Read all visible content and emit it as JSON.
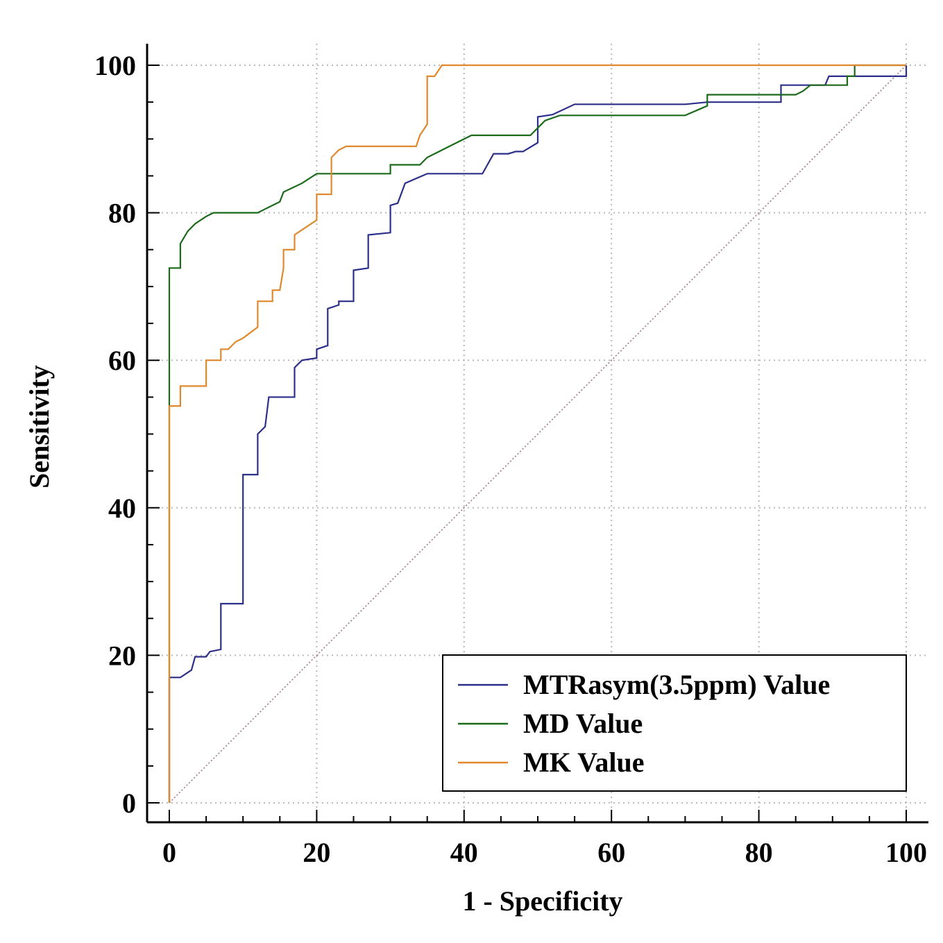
{
  "chart_data": {
    "type": "line",
    "title": "",
    "xlabel": "1 - Specificity",
    "ylabel": "Sensitivity",
    "xlim": [
      0,
      100
    ],
    "ylim": [
      0,
      100
    ],
    "xticks": [
      "0",
      "20",
      "40",
      "60",
      "80",
      "100"
    ],
    "yticks": [
      "0",
      "20",
      "40",
      "60",
      "80",
      "100"
    ],
    "grid": true,
    "legend_position": "bottom-right",
    "reference_line": {
      "name": "diagonal",
      "color": "#a07480",
      "points": [
        [
          0,
          0
        ],
        [
          100,
          100
        ]
      ]
    },
    "series": [
      {
        "name": "MTRasym(3.5ppm) Value",
        "color": "#2b2f8a",
        "points": [
          [
            0,
            0
          ],
          [
            0,
            17
          ],
          [
            1.5,
            17
          ],
          [
            3,
            18
          ],
          [
            3.5,
            19.8
          ],
          [
            5,
            19.8
          ],
          [
            5.5,
            20.5
          ],
          [
            7,
            20.8
          ],
          [
            7,
            27
          ],
          [
            10,
            27
          ],
          [
            10,
            44.5
          ],
          [
            12,
            44.5
          ],
          [
            12,
            50
          ],
          [
            13,
            51
          ],
          [
            13.5,
            55
          ],
          [
            17,
            55
          ],
          [
            17,
            59
          ],
          [
            18,
            60
          ],
          [
            20,
            60.3
          ],
          [
            20,
            61.5
          ],
          [
            21.5,
            62
          ],
          [
            21.5,
            67
          ],
          [
            23,
            67.5
          ],
          [
            23,
            68
          ],
          [
            25,
            68
          ],
          [
            25,
            72.2
          ],
          [
            27,
            72.5
          ],
          [
            27,
            77
          ],
          [
            30,
            77.3
          ],
          [
            30,
            81
          ],
          [
            31,
            81.3
          ],
          [
            32,
            84
          ],
          [
            35,
            85.3
          ],
          [
            40,
            85.3
          ],
          [
            42.5,
            85.3
          ],
          [
            44,
            88
          ],
          [
            46,
            88
          ],
          [
            47,
            88.3
          ],
          [
            48,
            88.3
          ],
          [
            50,
            89.5
          ],
          [
            50,
            93
          ],
          [
            52,
            93.3
          ],
          [
            55,
            94.7
          ],
          [
            60,
            94.7
          ],
          [
            65,
            94.7
          ],
          [
            70,
            94.7
          ],
          [
            73,
            95
          ],
          [
            80,
            95
          ],
          [
            83,
            95
          ],
          [
            83,
            97.3
          ],
          [
            85,
            97.3
          ],
          [
            88,
            97.3
          ],
          [
            89,
            97.3
          ],
          [
            89.5,
            98.5
          ],
          [
            92,
            98.5
          ],
          [
            95,
            98.5
          ],
          [
            98,
            98.5
          ],
          [
            100,
            98.5
          ],
          [
            100,
            100
          ]
        ]
      },
      {
        "name": "MD Value",
        "color": "#1a6a1a",
        "points": [
          [
            0,
            0
          ],
          [
            0,
            54
          ],
          [
            0,
            72.5
          ],
          [
            1.5,
            72.5
          ],
          [
            1.5,
            75.8
          ],
          [
            2.5,
            77.5
          ],
          [
            3.5,
            78.5
          ],
          [
            5,
            79.5
          ],
          [
            6,
            80
          ],
          [
            10,
            80
          ],
          [
            12,
            80
          ],
          [
            14,
            81
          ],
          [
            15,
            81.5
          ],
          [
            15.5,
            82.8
          ],
          [
            18,
            84
          ],
          [
            20,
            85.3
          ],
          [
            22,
            85.3
          ],
          [
            26,
            85.3
          ],
          [
            28,
            85.3
          ],
          [
            30,
            85.3
          ],
          [
            30,
            86.5
          ],
          [
            34,
            86.5
          ],
          [
            35,
            87.5
          ],
          [
            38,
            89
          ],
          [
            41,
            90.5
          ],
          [
            45,
            90.5
          ],
          [
            49,
            90.5
          ],
          [
            51,
            92.5
          ],
          [
            53,
            93.2
          ],
          [
            60,
            93.2
          ],
          [
            65,
            93.2
          ],
          [
            70,
            93.2
          ],
          [
            73,
            94.5
          ],
          [
            73,
            96
          ],
          [
            80,
            96
          ],
          [
            85,
            96
          ],
          [
            86,
            96.5
          ],
          [
            87,
            97.3
          ],
          [
            90,
            97.3
          ],
          [
            92,
            97.3
          ],
          [
            92,
            98.5
          ],
          [
            93,
            98.5
          ],
          [
            93,
            100
          ],
          [
            100,
            100
          ]
        ]
      },
      {
        "name": "MK Value",
        "color": "#e0882b",
        "points": [
          [
            0,
            0
          ],
          [
            0,
            53.8
          ],
          [
            1.5,
            53.8
          ],
          [
            1.5,
            56.5
          ],
          [
            5,
            56.5
          ],
          [
            5,
            60
          ],
          [
            7,
            60
          ],
          [
            7,
            61.5
          ],
          [
            8,
            61.5
          ],
          [
            9,
            62.5
          ],
          [
            10,
            63
          ],
          [
            12,
            64.5
          ],
          [
            12,
            68
          ],
          [
            13,
            68
          ],
          [
            14,
            68
          ],
          [
            14,
            69.5
          ],
          [
            15,
            69.5
          ],
          [
            15.5,
            72.5
          ],
          [
            15.5,
            75
          ],
          [
            17,
            75
          ],
          [
            17,
            77
          ],
          [
            20,
            79
          ],
          [
            20,
            82.5
          ],
          [
            22,
            82.5
          ],
          [
            22,
            87.5
          ],
          [
            23,
            88.5
          ],
          [
            24,
            89
          ],
          [
            28,
            89
          ],
          [
            33,
            89
          ],
          [
            33.5,
            89
          ],
          [
            34,
            90.5
          ],
          [
            35,
            92
          ],
          [
            35,
            98.5
          ],
          [
            36,
            98.5
          ],
          [
            37,
            100
          ],
          [
            40,
            100
          ],
          [
            100,
            100
          ]
        ]
      }
    ]
  }
}
